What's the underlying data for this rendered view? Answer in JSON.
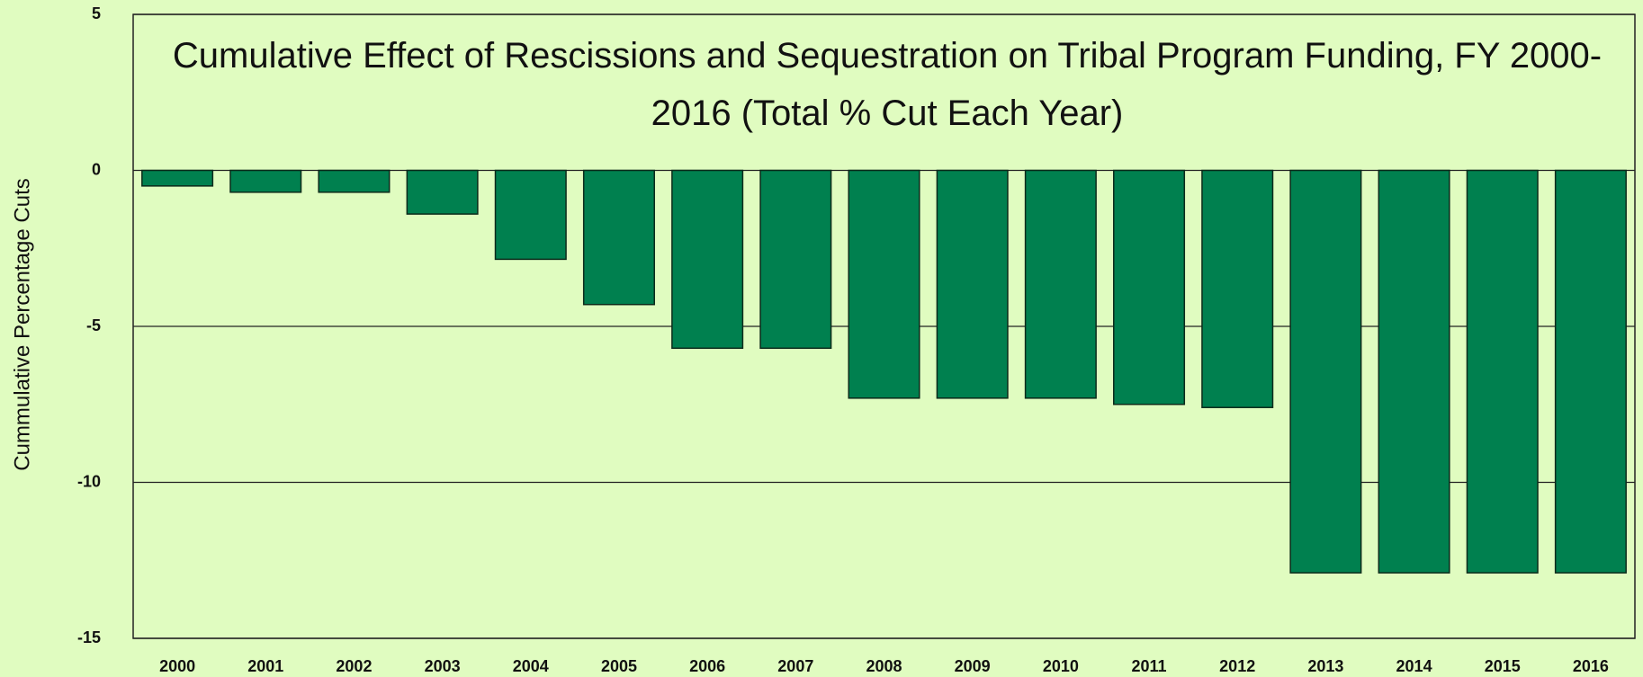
{
  "chart_data": {
    "type": "bar",
    "title": "Cumulative Effect of Rescissions and Sequestration on Tribal Program Funding, FY 2000-2016 (Total % Cut Each Year)",
    "ylabel": "Cummulative Percentage Cuts",
    "categories": [
      "2000",
      "2001",
      "2002",
      "2003",
      "2004",
      "2005",
      "2006",
      "2007",
      "2008",
      "2009",
      "2010",
      "2011",
      "2012",
      "2013",
      "2014",
      "2015",
      "2016"
    ],
    "values": [
      -0.5,
      -0.7,
      -0.7,
      -1.4,
      -2.85,
      -4.3,
      -5.7,
      -5.7,
      -7.3,
      -7.3,
      -7.3,
      -7.5,
      -7.6,
      -12.9,
      -12.9,
      -12.9,
      -12.9
    ],
    "color": "#00804f",
    "ylim": [
      -15,
      5
    ],
    "yticks": [
      -15,
      -10,
      -5,
      0,
      5
    ],
    "grid": true
  }
}
